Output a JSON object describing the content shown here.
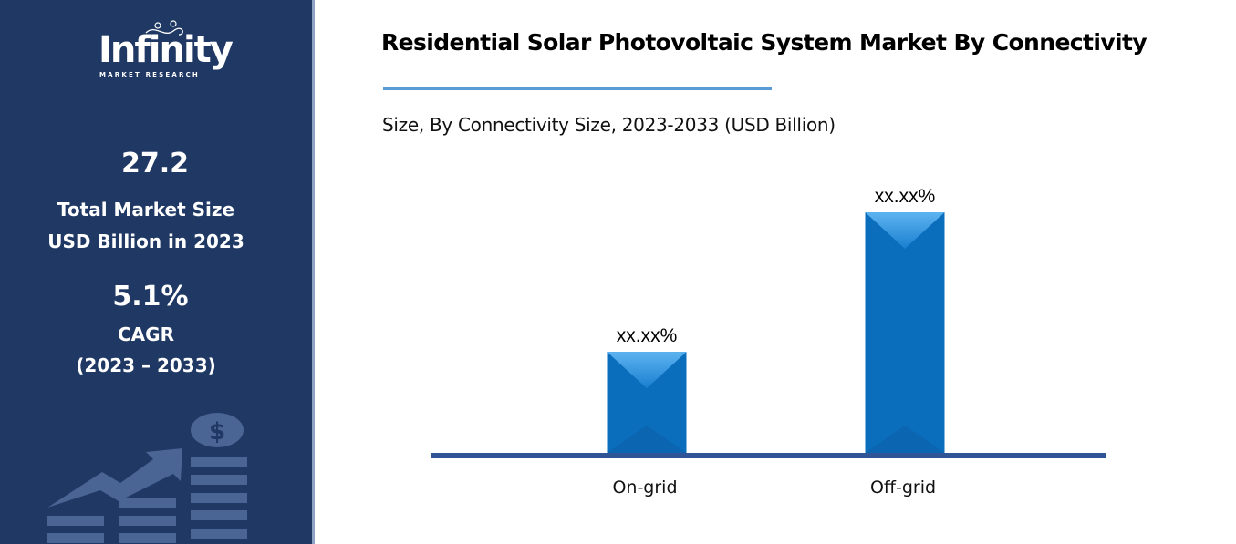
{
  "sidebar": {
    "logo_text": "Infinity",
    "logo_subtext": "MARKET RESEARCH",
    "market_size_value": "27.2",
    "market_size_label_1": "Total Market Size",
    "market_size_label_2": "USD Billion in 2023",
    "cagr_value": "5.1%",
    "cagr_label": "CAGR",
    "cagr_period": "(2023 – 2033)",
    "background_color": "#1f3864",
    "illustration": "growth-chart-dollar-icon"
  },
  "chart_data": {
    "type": "bar",
    "title": "Residential Solar Photovoltaic System Market By Connectivity",
    "subtitle": "Size, By Connectivity Size, 2023-2033 (USD Billion)",
    "categories": [
      "On-grid",
      "Off-grid"
    ],
    "values": [
      42,
      100
    ],
    "data_labels": [
      "xx.xx%",
      "xx.xx%"
    ],
    "ylim": [
      0,
      100
    ],
    "grid": false,
    "legend": "none",
    "bar_color": "#0a6ebd",
    "axis_color": "#2f5597"
  }
}
